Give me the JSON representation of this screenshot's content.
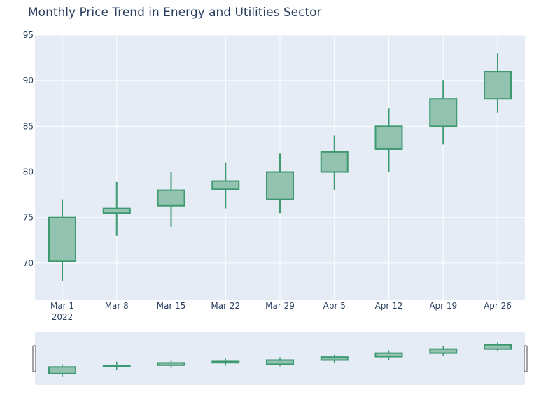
{
  "colors": {
    "plot_bg": "#e5ecf6",
    "grid": "#ffffff",
    "text": "#2a3f5f",
    "increasing_line": "#3d9970",
    "increasing_fill": "#93c2b0",
    "rangeslider_handle": "#444444"
  },
  "chart_data": {
    "type": "candlestick",
    "title": "Monthly Price Trend in Energy and Utilities Sector",
    "xlabel": "",
    "ylabel": "",
    "x": [
      "2022-03-01",
      "2022-03-08",
      "2022-03-15",
      "2022-03-22",
      "2022-03-29",
      "2022-04-05",
      "2022-04-12",
      "2022-04-19",
      "2022-04-26"
    ],
    "x_tick_labels": [
      "Mar 1",
      "Mar 8",
      "Mar 15",
      "Mar 22",
      "Mar 29",
      "Apr 5",
      "Apr 12",
      "Apr 19",
      "Apr 26"
    ],
    "x_year_label": "2022",
    "open": [
      70.2,
      75.5,
      76.3,
      78.1,
      77.0,
      80.0,
      82.5,
      85.0,
      88.0
    ],
    "high": [
      77.0,
      78.9,
      80.0,
      81.0,
      82.0,
      84.0,
      87.0,
      90.0,
      93.0
    ],
    "low": [
      68.0,
      73.0,
      74.0,
      76.0,
      75.5,
      78.0,
      80.0,
      83.0,
      86.5
    ],
    "close": [
      75.0,
      76.0,
      78.0,
      79.0,
      80.0,
      82.2,
      85.0,
      88.0,
      91.0
    ],
    "ylim": [
      66,
      95
    ],
    "y_ticks": [
      70,
      75,
      80,
      85,
      90,
      95
    ],
    "grid": true,
    "legend": "none",
    "range_slider": true
  }
}
